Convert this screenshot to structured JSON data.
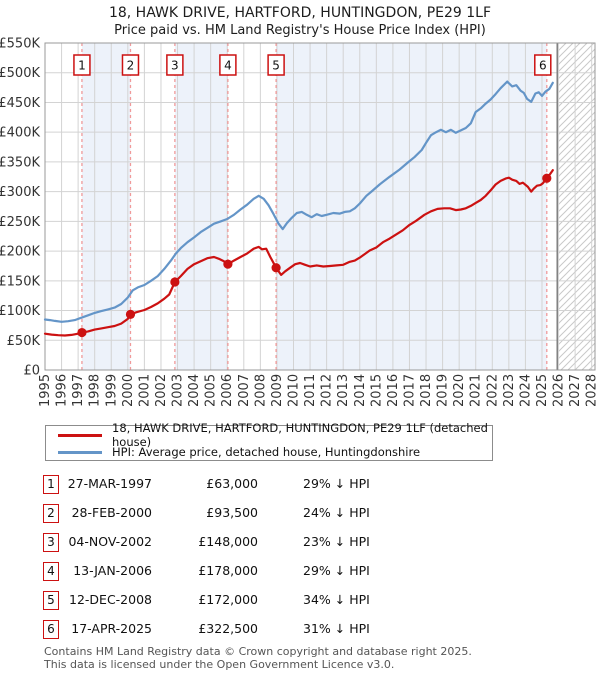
{
  "chart_data": {
    "type": "line",
    "title": "18, HAWK DRIVE, HARTFORD, HUNTINGDON, PE29 1LF",
    "subtitle": "Price paid vs. HM Land Registry's House Price Index (HPI)",
    "x_axis": {
      "range": [
        1995,
        2028.2
      ],
      "tick_years": [
        1995,
        1996,
        1997,
        1998,
        1999,
        2000,
        2001,
        2002,
        2003,
        2004,
        2005,
        2006,
        2007,
        2008,
        2009,
        2010,
        2011,
        2012,
        2013,
        2014,
        2015,
        2016,
        2017,
        2018,
        2019,
        2020,
        2021,
        2022,
        2023,
        2024,
        2025,
        2026,
        2027,
        2028
      ]
    },
    "y_axis": {
      "range": [
        0,
        550000
      ],
      "tick_step": 50000,
      "unit_note": "values in chart points are thousands of GBP",
      "tick_labels": [
        "£0",
        "£50K",
        "£100K",
        "£150K",
        "£200K",
        "£250K",
        "£300K",
        "£350K",
        "£400K",
        "£450K",
        "£500K",
        "£550K"
      ]
    },
    "now_marker_year": 2025.92,
    "future_hatch_range": [
      2025.92,
      2028.2
    ],
    "ownership_shading_periods": [
      [
        1997.23,
        2000.16
      ],
      [
        2002.84,
        2006.04
      ],
      [
        2008.95,
        2025.29
      ]
    ],
    "colors": {
      "price_line": "#cc1111",
      "hpi_line": "#6495c8",
      "band": "#edf2fa",
      "grid": "#d3d3d3",
      "frame": "#999999",
      "sale_dashed_line": "#f09a9a",
      "now_line": "#808080",
      "hatch": "#c9c9c9",
      "axis_text": "#333333",
      "marker_box_border": "#cc1111",
      "marker_box_text": "#111111"
    },
    "legend_position": "below",
    "grid": true,
    "series": [
      {
        "name": "18, HAWK DRIVE, HARTFORD, HUNTINGDON, PE29 1LF (detached house)",
        "color": "#cc1111",
        "points": [
          [
            1995.0,
            61
          ],
          [
            1995.4,
            59.5
          ],
          [
            1995.8,
            58.5
          ],
          [
            1996.2,
            58
          ],
          [
            1996.6,
            59
          ],
          [
            1997.0,
            61
          ],
          [
            1997.23,
            63
          ],
          [
            1997.6,
            65
          ],
          [
            1998.0,
            68
          ],
          [
            1998.4,
            70
          ],
          [
            1998.8,
            72
          ],
          [
            1999.2,
            74
          ],
          [
            1999.6,
            78
          ],
          [
            2000.0,
            86
          ],
          [
            2000.16,
            93.5
          ],
          [
            2000.5,
            97
          ],
          [
            2001.0,
            101
          ],
          [
            2001.4,
            106
          ],
          [
            2001.8,
            112
          ],
          [
            2002.2,
            120
          ],
          [
            2002.5,
            127
          ],
          [
            2002.84,
            148
          ],
          [
            2003.2,
            158
          ],
          [
            2003.6,
            170
          ],
          [
            2004.0,
            178
          ],
          [
            2004.4,
            183
          ],
          [
            2004.8,
            188
          ],
          [
            2005.2,
            190
          ],
          [
            2005.5,
            187
          ],
          [
            2005.8,
            183
          ],
          [
            2006.04,
            178
          ],
          [
            2006.4,
            184
          ],
          [
            2006.8,
            190
          ],
          [
            2007.2,
            196
          ],
          [
            2007.6,
            204
          ],
          [
            2007.9,
            207
          ],
          [
            2008.1,
            203
          ],
          [
            2008.35,
            204
          ],
          [
            2008.6,
            190
          ],
          [
            2008.95,
            172
          ],
          [
            2009.25,
            160
          ],
          [
            2009.5,
            166
          ],
          [
            2009.8,
            172
          ],
          [
            2010.1,
            178
          ],
          [
            2010.4,
            180
          ],
          [
            2010.7,
            177
          ],
          [
            2011.0,
            174
          ],
          [
            2011.4,
            176
          ],
          [
            2011.8,
            174
          ],
          [
            2012.2,
            175
          ],
          [
            2012.6,
            176
          ],
          [
            2013.0,
            177
          ],
          [
            2013.4,
            182
          ],
          [
            2013.7,
            184
          ],
          [
            2014.0,
            189
          ],
          [
            2014.3,
            195
          ],
          [
            2014.6,
            201
          ],
          [
            2015.0,
            206
          ],
          [
            2015.4,
            215
          ],
          [
            2015.8,
            221
          ],
          [
            2016.2,
            228
          ],
          [
            2016.6,
            235
          ],
          [
            2017.0,
            244
          ],
          [
            2017.4,
            251
          ],
          [
            2017.9,
            261
          ],
          [
            2018.3,
            267
          ],
          [
            2018.7,
            271
          ],
          [
            2019.1,
            272
          ],
          [
            2019.45,
            272
          ],
          [
            2019.8,
            269
          ],
          [
            2020.1,
            270
          ],
          [
            2020.4,
            272
          ],
          [
            2020.7,
            276
          ],
          [
            2021.0,
            281
          ],
          [
            2021.3,
            286
          ],
          [
            2021.6,
            293
          ],
          [
            2021.9,
            302
          ],
          [
            2022.2,
            312
          ],
          [
            2022.5,
            318
          ],
          [
            2022.8,
            322
          ],
          [
            2023.0,
            323.5
          ],
          [
            2023.2,
            320
          ],
          [
            2023.45,
            318
          ],
          [
            2023.65,
            313
          ],
          [
            2023.85,
            315
          ],
          [
            2024.15,
            308
          ],
          [
            2024.35,
            300
          ],
          [
            2024.5,
            305
          ],
          [
            2024.7,
            310
          ],
          [
            2024.9,
            311
          ],
          [
            2025.05,
            314
          ],
          [
            2025.29,
            322.5
          ],
          [
            2025.5,
            330
          ],
          [
            2025.65,
            336
          ]
        ]
      },
      {
        "name": "HPI: Average price, detached house, Huntingdonshire",
        "color": "#6495c8",
        "points": [
          [
            1995.0,
            85
          ],
          [
            1995.3,
            84
          ],
          [
            1995.6,
            82.5
          ],
          [
            1996.0,
            81
          ],
          [
            1996.4,
            82
          ],
          [
            1996.8,
            84
          ],
          [
            1997.2,
            88
          ],
          [
            1997.6,
            92
          ],
          [
            1998.0,
            96
          ],
          [
            1998.4,
            99
          ],
          [
            1998.8,
            102
          ],
          [
            1999.2,
            105
          ],
          [
            1999.6,
            111
          ],
          [
            2000.0,
            122
          ],
          [
            2000.3,
            134
          ],
          [
            2000.6,
            139
          ],
          [
            2001.0,
            143
          ],
          [
            2001.4,
            150
          ],
          [
            2001.8,
            158
          ],
          [
            2002.2,
            170
          ],
          [
            2002.6,
            184
          ],
          [
            2002.9,
            196
          ],
          [
            2003.2,
            205
          ],
          [
            2003.6,
            215
          ],
          [
            2004.0,
            223
          ],
          [
            2004.4,
            232
          ],
          [
            2004.8,
            239
          ],
          [
            2005.2,
            246
          ],
          [
            2005.6,
            250
          ],
          [
            2006.0,
            254
          ],
          [
            2006.4,
            261
          ],
          [
            2006.8,
            270
          ],
          [
            2007.2,
            278
          ],
          [
            2007.6,
            288
          ],
          [
            2007.9,
            293
          ],
          [
            2008.2,
            288
          ],
          [
            2008.5,
            277
          ],
          [
            2008.8,
            262
          ],
          [
            2009.1,
            246
          ],
          [
            2009.35,
            237
          ],
          [
            2009.6,
            247
          ],
          [
            2009.9,
            256
          ],
          [
            2010.2,
            264
          ],
          [
            2010.5,
            266
          ],
          [
            2010.8,
            261
          ],
          [
            2011.1,
            257
          ],
          [
            2011.4,
            262
          ],
          [
            2011.7,
            259
          ],
          [
            2012.0,
            261
          ],
          [
            2012.4,
            264
          ],
          [
            2012.8,
            263
          ],
          [
            2013.1,
            266
          ],
          [
            2013.4,
            267
          ],
          [
            2013.7,
            272
          ],
          [
            2014.0,
            280
          ],
          [
            2014.4,
            293
          ],
          [
            2014.7,
            300
          ],
          [
            2015.2,
            312
          ],
          [
            2015.8,
            325
          ],
          [
            2016.4,
            337
          ],
          [
            2016.95,
            350
          ],
          [
            2017.3,
            358
          ],
          [
            2017.74,
            370
          ],
          [
            2018.0,
            382
          ],
          [
            2018.3,
            395
          ],
          [
            2018.6,
            400
          ],
          [
            2018.9,
            404
          ],
          [
            2019.2,
            400
          ],
          [
            2019.5,
            404
          ],
          [
            2019.8,
            399
          ],
          [
            2020.1,
            403
          ],
          [
            2020.4,
            407
          ],
          [
            2020.7,
            415
          ],
          [
            2021.0,
            434
          ],
          [
            2021.3,
            440
          ],
          [
            2021.6,
            448
          ],
          [
            2021.9,
            455
          ],
          [
            2022.2,
            464
          ],
          [
            2022.5,
            474
          ],
          [
            2022.9,
            485
          ],
          [
            2023.2,
            477
          ],
          [
            2023.45,
            479
          ],
          [
            2023.7,
            470
          ],
          [
            2023.9,
            466
          ],
          [
            2024.1,
            456
          ],
          [
            2024.35,
            451
          ],
          [
            2024.6,
            465
          ],
          [
            2024.8,
            467
          ],
          [
            2025.0,
            461
          ],
          [
            2025.2,
            468
          ],
          [
            2025.45,
            473
          ],
          [
            2025.65,
            483
          ]
        ]
      }
    ],
    "sales": [
      {
        "n": "1",
        "year": 1997.23,
        "value_k": 63,
        "date": "27-MAR-1997",
        "price": 63000,
        "vs_hpi": "29% ↓ HPI"
      },
      {
        "n": "2",
        "year": 2000.16,
        "value_k": 93.5,
        "date": "28-FEB-2000",
        "price": 93500,
        "vs_hpi": "24% ↓ HPI"
      },
      {
        "n": "3",
        "year": 2002.84,
        "value_k": 148,
        "date": "04-NOV-2002",
        "price": 148000,
        "vs_hpi": "23% ↓ HPI"
      },
      {
        "n": "4",
        "year": 2006.04,
        "value_k": 178,
        "date": "13-JAN-2006",
        "price": 178000,
        "vs_hpi": "29% ↓ HPI"
      },
      {
        "n": "5",
        "year": 2008.95,
        "value_k": 172,
        "date": "12-DEC-2008",
        "price": 172000,
        "vs_hpi": "34% ↓ HPI"
      },
      {
        "n": "6",
        "year": 2025.29,
        "value_k": 322.5,
        "date": "17-APR-2025",
        "price": 322500,
        "vs_hpi": "31% ↓ HPI"
      }
    ]
  },
  "table": {
    "rows": [
      {
        "n": "1",
        "date": "27-MAR-1997",
        "price": "£63,000",
        "hpi": "29% ↓ HPI"
      },
      {
        "n": "2",
        "date": "28-FEB-2000",
        "price": "£93,500",
        "hpi": "24% ↓ HPI"
      },
      {
        "n": "3",
        "date": "04-NOV-2002",
        "price": "£148,000",
        "hpi": "23% ↓ HPI"
      },
      {
        "n": "4",
        "date": "13-JAN-2006",
        "price": "£178,000",
        "hpi": "29% ↓ HPI"
      },
      {
        "n": "5",
        "date": "12-DEC-2008",
        "price": "£172,000",
        "hpi": "34% ↓ HPI"
      },
      {
        "n": "6",
        "date": "17-APR-2025",
        "price": "£322,500",
        "hpi": "31% ↓ HPI"
      }
    ]
  },
  "footer": {
    "line1": "Contains HM Land Registry data © Crown copyright and database right 2025.",
    "line2": "This data is licensed under the Open Government Licence v3.0."
  }
}
